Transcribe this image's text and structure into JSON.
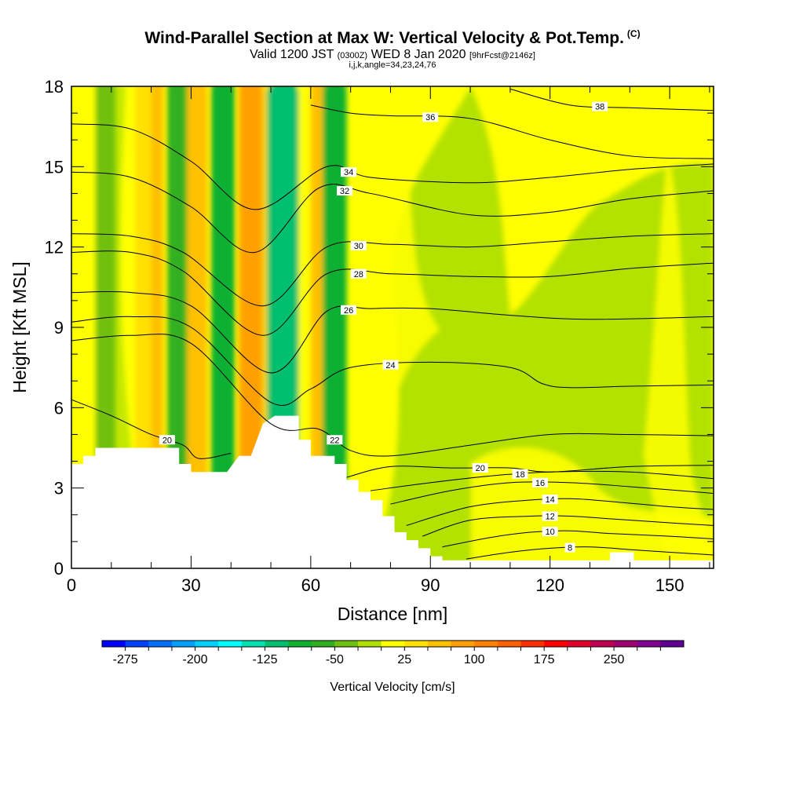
{
  "header": {
    "title": "Wind-Parallel Section at Max W: Vertical Velocity & Pot.Temp.",
    "title_mark": "(C)",
    "valid_prefix": "Valid 1200 JST",
    "valid_utc": "(0300Z)",
    "valid_date": "WED 8 Jan 2020",
    "forecast": "[9hrFcst@2146z]",
    "indices": "i,j,k,angle=34,23,24,76"
  },
  "chart_data": {
    "type": "heatmap",
    "title": "Wind-Parallel Section at Max W: Vertical Velocity & Pot.Temp.",
    "xlabel": "Distance [nm]",
    "ylabel": "Height [Kft MSL]",
    "xlim": [
      0,
      161
    ],
    "ylim": [
      0,
      18
    ],
    "xticks": [
      0,
      30,
      60,
      90,
      120,
      150
    ],
    "xtick_labels": [
      "0",
      "30",
      "60",
      "90",
      "120",
      "150"
    ],
    "yticks": [
      0,
      3,
      6,
      9,
      12,
      15,
      18
    ],
    "ytick_labels": [
      "0",
      "3",
      "6",
      "9",
      "12",
      "15",
      "18"
    ],
    "colorbar": {
      "label": "Vertical Velocity [cm/s]",
      "tick_labels": [
        "-275",
        "-200",
        "-125",
        "-50",
        "25",
        "100",
        "175",
        "250"
      ],
      "tick_values": [
        -275,
        -200,
        -125,
        -50,
        25,
        100,
        175,
        250
      ],
      "colors": [
        "#0000ff",
        "#0040ff",
        "#0070ff",
        "#00a0ff",
        "#00d0ff",
        "#00ffff",
        "#00e0b0",
        "#00c070",
        "#10b030",
        "#30b020",
        "#70c010",
        "#b0e000",
        "#ffff00",
        "#ffe000",
        "#ffc000",
        "#ffa000",
        "#ff8000",
        "#ff6000",
        "#ff3000",
        "#ff0000",
        "#e0002a",
        "#c00050",
        "#a00070",
        "#800090",
        "#600090"
      ]
    },
    "velocity_bands": [
      {
        "x": [
          0,
          6
        ],
        "value": 0
      },
      {
        "x": [
          6,
          11
        ],
        "value": -40
      },
      {
        "x": [
          16,
          20
        ],
        "value": 25
      },
      {
        "x": [
          20,
          23
        ],
        "value": 60
      },
      {
        "x": [
          24,
          29
        ],
        "value": -70
      },
      {
        "x": [
          29,
          34
        ],
        "value": 60
      },
      {
        "x": [
          35,
          41
        ],
        "value": -85
      },
      {
        "x": [
          42,
          48
        ],
        "value": 80
      },
      {
        "x": [
          48,
          52
        ],
        "value": 40
      },
      {
        "x": [
          49,
          57
        ],
        "value": -120
      },
      {
        "x": [
          57,
          60
        ],
        "value": 0
      },
      {
        "x": [
          60,
          65
        ],
        "value": 70
      },
      {
        "x": [
          63,
          69
        ],
        "value": -85
      }
    ],
    "terrain": {
      "x": [
        0,
        3,
        3,
        6,
        6,
        27,
        27,
        30,
        30,
        39,
        39,
        42,
        42,
        45,
        45,
        48,
        48,
        51,
        51,
        57,
        57,
        60,
        60,
        66,
        66,
        69,
        69,
        72,
        72,
        75,
        75,
        78,
        78,
        81,
        81,
        84,
        84,
        87,
        87,
        90,
        90,
        93,
        93,
        96,
        96,
        99,
        99,
        135,
        135,
        141,
        141,
        161
      ],
      "height": [
        3.9,
        3.9,
        4.2,
        4.2,
        4.5,
        4.5,
        3.9,
        3.9,
        3.6,
        3.6,
        3.6,
        4.2,
        4.2,
        4.2,
        4.2,
        5.4,
        5.4,
        5.7,
        5.7,
        5.7,
        4.8,
        4.8,
        4.2,
        4.2,
        3.9,
        3.9,
        3.3,
        3.3,
        2.85,
        2.85,
        2.55,
        2.55,
        1.95,
        1.95,
        1.35,
        1.35,
        1.05,
        1.05,
        0.75,
        0.75,
        0.45,
        0.45,
        0.3,
        0.3,
        0.3,
        0.3,
        0.3,
        0.3,
        0.6,
        0.6,
        0.3,
        0.3
      ]
    },
    "potential_temperature_contours": [
      {
        "label": "8",
        "x": [
          99,
          110,
          120,
          130,
          140,
          150,
          161
        ],
        "y": [
          0.35,
          0.6,
          0.75,
          0.8,
          0.7,
          0.6,
          0.5
        ]
      },
      {
        "label": "10",
        "x": [
          93,
          105,
          115,
          125,
          135,
          150,
          161
        ],
        "y": [
          0.8,
          1.15,
          1.35,
          1.4,
          1.3,
          1.2,
          1.1
        ]
      },
      {
        "label": "12",
        "x": [
          88,
          100,
          115,
          125,
          135,
          150,
          161
        ],
        "y": [
          1.2,
          1.8,
          1.95,
          1.95,
          1.85,
          1.7,
          1.6
        ]
      },
      {
        "label": "14",
        "x": [
          84,
          100,
          115,
          125,
          135,
          150,
          161
        ],
        "y": [
          1.6,
          2.3,
          2.55,
          2.6,
          2.5,
          2.3,
          2.2
        ]
      },
      {
        "label": "16",
        "x": [
          80,
          95,
          110,
          125,
          140,
          161
        ],
        "y": [
          2.4,
          2.9,
          3.2,
          3.2,
          3.05,
          2.8
        ]
      },
      {
        "label": "18",
        "x": [
          75,
          90,
          105,
          120,
          140,
          161
        ],
        "y": [
          2.9,
          3.2,
          3.45,
          3.6,
          3.6,
          3.35
        ]
      },
      {
        "label": "20",
        "x": [
          69,
          80,
          95,
          110,
          120,
          140,
          161
        ],
        "y": [
          3.4,
          3.8,
          3.75,
          3.75,
          3.6,
          3.8,
          3.85
        ]
      },
      {
        "label": "20",
        "x": [
          0,
          10,
          20,
          28,
          32,
          40
        ],
        "y": [
          6.3,
          5.7,
          5.0,
          4.6,
          4.1,
          4.3
        ]
      },
      {
        "label": "22",
        "x": [
          0,
          15,
          30,
          50,
          62,
          70,
          80,
          100,
          120,
          140,
          161
        ],
        "y": [
          8.5,
          8.7,
          8.4,
          5.4,
          5.2,
          4.4,
          4.2,
          4.6,
          5.0,
          5.0,
          4.95
        ]
      },
      {
        "label": "24",
        "x": [
          0,
          15,
          30,
          50,
          60,
          70,
          90,
          110,
          118,
          125,
          140,
          161
        ],
        "y": [
          9.2,
          9.4,
          9.0,
          6.2,
          6.7,
          7.5,
          7.7,
          7.5,
          6.9,
          6.75,
          6.8,
          6.85
        ]
      },
      {
        "label": "26",
        "x": [
          0,
          15,
          30,
          50,
          64,
          75,
          90,
          110,
          130,
          161
        ],
        "y": [
          10.3,
          10.3,
          9.8,
          7.3,
          9.6,
          9.7,
          9.7,
          9.45,
          9.3,
          9.4
        ]
      },
      {
        "label": "28",
        "x": [
          0,
          15,
          28,
          48,
          64,
          80,
          100,
          120,
          140,
          161
        ],
        "y": [
          11.8,
          11.8,
          11.1,
          8.7,
          11.0,
          11.0,
          10.9,
          10.9,
          11.2,
          11.4
        ]
      },
      {
        "label": "30",
        "x": [
          0,
          15,
          28,
          48,
          64,
          80,
          100,
          120,
          140,
          161
        ],
        "y": [
          12.5,
          12.4,
          11.8,
          9.8,
          12.0,
          12.1,
          12.0,
          12.2,
          12.4,
          12.5
        ]
      },
      {
        "label": "32",
        "x": [
          0,
          15,
          30,
          46,
          62,
          75,
          100,
          120,
          140,
          161
        ],
        "y": [
          14.8,
          14.6,
          13.5,
          11.8,
          14.2,
          14.0,
          13.2,
          13.3,
          13.8,
          14.1
        ]
      },
      {
        "label": "34",
        "x": [
          0,
          15,
          30,
          46,
          64,
          75,
          100,
          120,
          140,
          161
        ],
        "y": [
          16.6,
          16.4,
          15.2,
          13.4,
          15.0,
          14.6,
          14.4,
          14.6,
          14.9,
          15.1
        ]
      },
      {
        "label": "36",
        "x": [
          60,
          70,
          80,
          100,
          120,
          140,
          161
        ],
        "y": [
          17.3,
          17.0,
          16.9,
          16.8,
          16.0,
          15.4,
          15.3
        ]
      },
      {
        "label": "38",
        "x": [
          110,
          125,
          140,
          161
        ],
        "y": [
          17.9,
          17.3,
          17.2,
          17.1
        ]
      }
    ]
  }
}
